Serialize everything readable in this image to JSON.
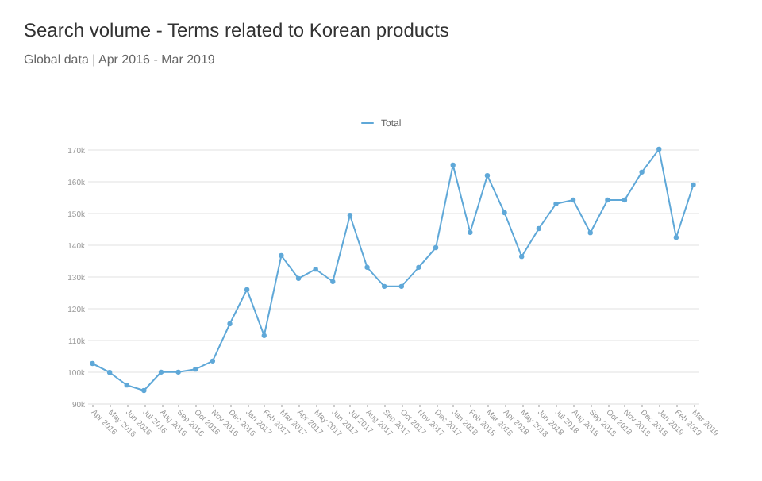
{
  "chart_data": {
    "type": "line",
    "title": "Search volume - Terms related to Korean products",
    "subtitle": "Global data | Apr 2016 - Mar 2019",
    "categories": [
      "Apr 2016",
      "May 2016",
      "Jun 2016",
      "Jul 2016",
      "Aug 2016",
      "Sep 2016",
      "Oct 2016",
      "Nov 2016",
      "Dec 2016",
      "Jan 2017",
      "Feb 2017",
      "Mar 2017",
      "Apr 2017",
      "May 2017",
      "Jun 2017",
      "Jul 2017",
      "Aug 2017",
      "Sep 2017",
      "Oct 2017",
      "Nov 2017",
      "Dec 2017",
      "Jan 2018",
      "Feb 2018",
      "Mar 2018",
      "Apr 2018",
      "May 2018",
      "Jun 2018",
      "Jul 2018",
      "Aug 2018",
      "Sep 2018",
      "Oct 2018",
      "Nov 2018",
      "Dec 2018",
      "Jan 2019",
      "Feb 2019",
      "Mar 2019"
    ],
    "series": [
      {
        "name": "Total",
        "color": "#5fa8d8",
        "values": [
          102500,
          99700,
          95700,
          94000,
          99800,
          99800,
          100700,
          103300,
          115000,
          125800,
          111300,
          136500,
          129300,
          132200,
          128300,
          149200,
          132800,
          126800,
          126800,
          132800,
          139000,
          165000,
          143800,
          161700,
          150000,
          136200,
          145000,
          152800,
          154000,
          143700,
          154000,
          154000,
          162800,
          170000,
          142200,
          158800
        ]
      }
    ],
    "ylim": [
      90000,
      170000
    ],
    "yticks": [
      {
        "value": 90000,
        "label": "90k"
      },
      {
        "value": 100000,
        "label": "100k"
      },
      {
        "value": 110000,
        "label": "110k"
      },
      {
        "value": 120000,
        "label": "120k"
      },
      {
        "value": 130000,
        "label": "130k"
      },
      {
        "value": 140000,
        "label": "140k"
      },
      {
        "value": 150000,
        "label": "150k"
      },
      {
        "value": 160000,
        "label": "160k"
      },
      {
        "value": 170000,
        "label": "170k"
      }
    ],
    "grid": "y",
    "legend": "top",
    "marker": "circle",
    "line_style": "solid"
  }
}
